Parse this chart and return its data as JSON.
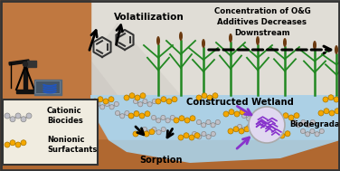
{
  "bg_color": "#d8d4cc",
  "sky_color": "#dcdad4",
  "water_color": "#a8d0e8",
  "soil_color": "#c07840",
  "soil_dark": "#b06830",
  "legend_bg": "#f0ece0",
  "text_volatilization": "Volatilization",
  "text_concentration": "Concentration of O&G\nAdditives Decreases\nDownstream",
  "text_wetland": "Constructed Wetland",
  "text_biodegradation": "Biodegradation",
  "text_sorption": "Sorption",
  "text_cationic": "Cationic\nBiocides",
  "text_nonionic": "Nonionic\nSurfactants",
  "orange_color": "#f5a800",
  "gray_mol_color": "#c0c0c8",
  "purple_color": "#8833cc",
  "green_color": "#228822",
  "mountain_color": "#c0bcb4",
  "border_color": "#444444"
}
